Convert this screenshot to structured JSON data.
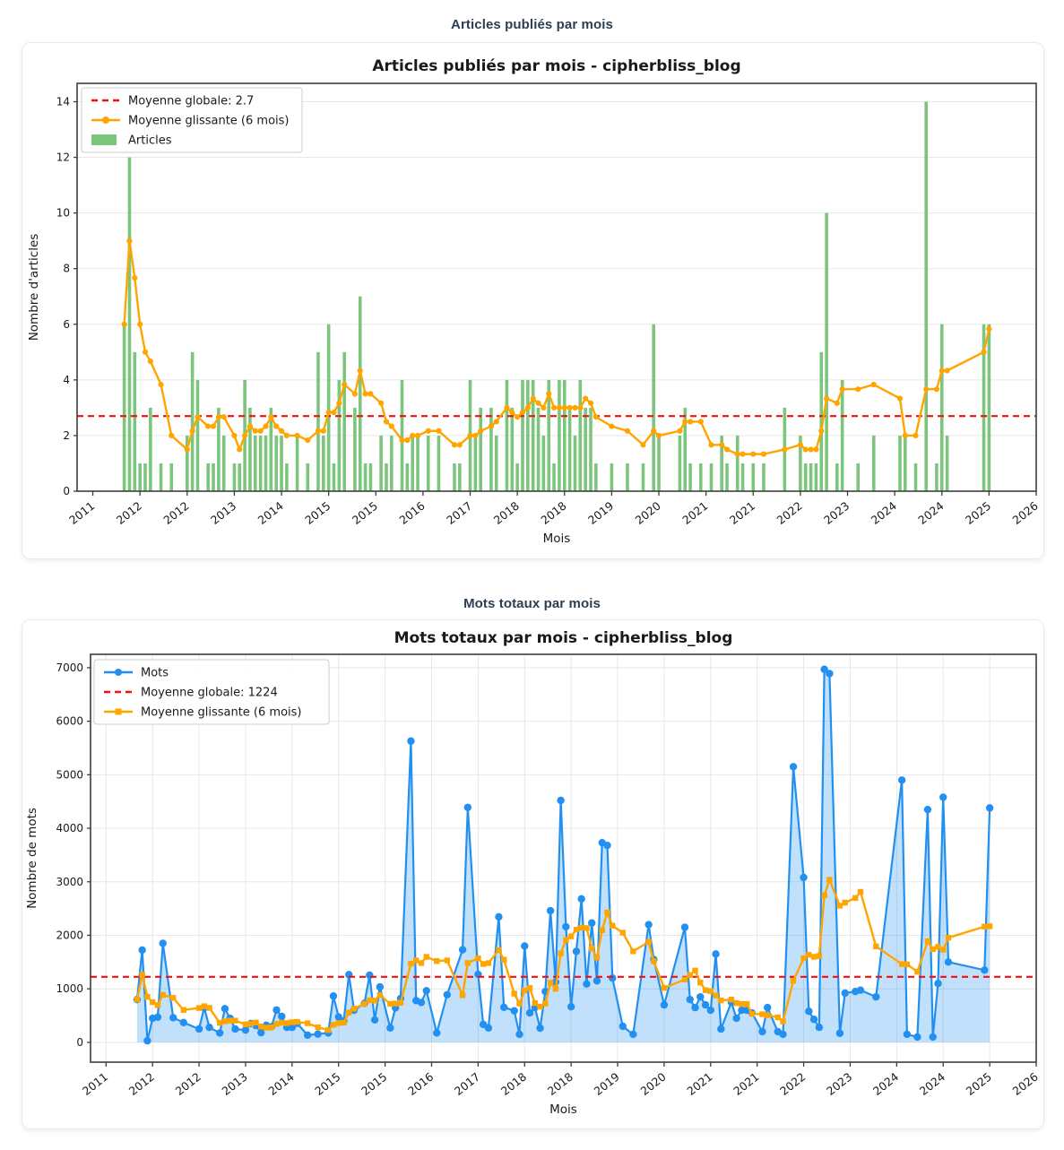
{
  "page": {
    "background": "#ffffff"
  },
  "sections": [
    {
      "header": "Articles publiés par mois"
    },
    {
      "header": "Mots totaux par mois"
    }
  ],
  "colors": {
    "header_text": "#2c3e50",
    "bar_green": "#7cc57c",
    "ma_orange": "#ffa500",
    "mean_red": "#f50f0f",
    "line_blue": "#2190f0",
    "fill_blue": "rgba(33,144,240,0.28)",
    "grid": "#e7e7e7",
    "frame": "#3d3d3d"
  },
  "chart_data": [
    {
      "type": "bar",
      "title": "Articles publiés par mois - cipherbliss_blog",
      "xlabel": "Mois",
      "ylabel": "Nombre d'articles",
      "ymin": 0,
      "ymax": 14.66,
      "yticks": [
        0,
        2,
        4,
        6,
        8,
        10,
        12,
        14
      ],
      "xtick_first_index": 3,
      "xtick_step": 9,
      "xtick_labels": [
        "2011",
        "2012",
        "2012",
        "2013",
        "2014",
        "2015",
        "2015",
        "2016",
        "2017",
        "2018",
        "2018",
        "2019",
        "2020",
        "2021",
        "2021",
        "2022",
        "2023",
        "2024",
        "2024",
        "2025",
        "2026"
      ],
      "grid_vertical": false,
      "mean_value": 2.7,
      "rolling_window": 6,
      "legend": [
        {
          "swatch": "dash",
          "color": "mean_red",
          "label": "Moyenne globale: 2.7"
        },
        {
          "swatch": "line-circle",
          "color": "ma_orange",
          "label": "Moyenne glissante (6 mois)"
        },
        {
          "swatch": "patch",
          "color": "bar_green",
          "label": "Articles"
        }
      ],
      "ma_marker": "circle",
      "points": [
        [
          "2011-10",
          6
        ],
        [
          "2011-11",
          12
        ],
        [
          "2011-12",
          5
        ],
        [
          "2012-01",
          1
        ],
        [
          "2012-02",
          1
        ],
        [
          "2012-03",
          3
        ],
        [
          "2012-05",
          1
        ],
        [
          "2012-07",
          1
        ],
        [
          "2012-10",
          2
        ],
        [
          "2012-11",
          5
        ],
        [
          "2012-12",
          4
        ],
        [
          "2013-02",
          1
        ],
        [
          "2013-03",
          1
        ],
        [
          "2013-04",
          3
        ],
        [
          "2013-05",
          2
        ],
        [
          "2013-07",
          1
        ],
        [
          "2013-08",
          1
        ],
        [
          "2013-09",
          4
        ],
        [
          "2013-10",
          3
        ],
        [
          "2013-11",
          2
        ],
        [
          "2013-12",
          2
        ],
        [
          "2014-01",
          2
        ],
        [
          "2014-02",
          3
        ],
        [
          "2014-03",
          2
        ],
        [
          "2014-04",
          2
        ],
        [
          "2014-05",
          1
        ],
        [
          "2014-07",
          2
        ],
        [
          "2014-09",
          1
        ],
        [
          "2014-11",
          5
        ],
        [
          "2014-12",
          2
        ],
        [
          "2015-01",
          6
        ],
        [
          "2015-02",
          1
        ],
        [
          "2015-03",
          4
        ],
        [
          "2015-04",
          5
        ],
        [
          "2015-06",
          3
        ],
        [
          "2015-07",
          7
        ],
        [
          "2015-08",
          1
        ],
        [
          "2015-09",
          1
        ],
        [
          "2015-11",
          2
        ],
        [
          "2015-12",
          1
        ],
        [
          "2016-01",
          2
        ],
        [
          "2016-03",
          4
        ],
        [
          "2016-04",
          1
        ],
        [
          "2016-05",
          2
        ],
        [
          "2016-06",
          2
        ],
        [
          "2016-08",
          2
        ],
        [
          "2016-10",
          2
        ],
        [
          "2017-01",
          1
        ],
        [
          "2017-02",
          1
        ],
        [
          "2017-04",
          4
        ],
        [
          "2017-05",
          2
        ],
        [
          "2017-06",
          3
        ],
        [
          "2017-08",
          3
        ],
        [
          "2017-09",
          2
        ],
        [
          "2017-11",
          4
        ],
        [
          "2017-12",
          3
        ],
        [
          "2018-01",
          1
        ],
        [
          "2018-02",
          4
        ],
        [
          "2018-03",
          4
        ],
        [
          "2018-04",
          4
        ],
        [
          "2018-05",
          3
        ],
        [
          "2018-06",
          2
        ],
        [
          "2018-07",
          4
        ],
        [
          "2018-08",
          1
        ],
        [
          "2018-09",
          4
        ],
        [
          "2018-10",
          4
        ],
        [
          "2018-11",
          3
        ],
        [
          "2018-12",
          2
        ],
        [
          "2019-01",
          4
        ],
        [
          "2019-02",
          3
        ],
        [
          "2019-03",
          3
        ],
        [
          "2019-04",
          1
        ],
        [
          "2019-07",
          1
        ],
        [
          "2019-10",
          1
        ],
        [
          "2020-01",
          1
        ],
        [
          "2020-03",
          6
        ],
        [
          "2020-04",
          2
        ],
        [
          "2020-08",
          2
        ],
        [
          "2020-09",
          3
        ],
        [
          "2020-10",
          1
        ],
        [
          "2020-12",
          1
        ],
        [
          "2021-02",
          1
        ],
        [
          "2021-04",
          2
        ],
        [
          "2021-05",
          1
        ],
        [
          "2021-07",
          2
        ],
        [
          "2021-08",
          1
        ],
        [
          "2021-10",
          1
        ],
        [
          "2021-12",
          1
        ],
        [
          "2022-04",
          3
        ],
        [
          "2022-07",
          2
        ],
        [
          "2022-08",
          1
        ],
        [
          "2022-09",
          1
        ],
        [
          "2022-10",
          1
        ],
        [
          "2022-11",
          5
        ],
        [
          "2022-12",
          10
        ],
        [
          "2023-02",
          1
        ],
        [
          "2023-03",
          4
        ],
        [
          "2023-06",
          1
        ],
        [
          "2023-09",
          2
        ],
        [
          "2024-02",
          2
        ],
        [
          "2024-03",
          2
        ],
        [
          "2024-05",
          1
        ],
        [
          "2024-07",
          14
        ],
        [
          "2024-09",
          1
        ],
        [
          "2024-10",
          6
        ],
        [
          "2024-11",
          2
        ],
        [
          "2025-06",
          6
        ],
        [
          "2025-07",
          6
        ]
      ]
    },
    {
      "type": "line",
      "title": "Mots totaux par mois - cipherbliss_blog",
      "xlabel": "Mois",
      "ylabel": "Nombre de mots",
      "ymin": -370,
      "ymax": 7250,
      "yticks": [
        0,
        1000,
        2000,
        3000,
        4000,
        5000,
        6000,
        7000
      ],
      "xtick_first_index": 3,
      "xtick_step": 9,
      "xtick_labels": [
        "2011",
        "2012",
        "2012",
        "2013",
        "2014",
        "2015",
        "2015",
        "2016",
        "2017",
        "2018",
        "2018",
        "2019",
        "2020",
        "2021",
        "2021",
        "2022",
        "2023",
        "2024",
        "2024",
        "2025",
        "2026"
      ],
      "grid_vertical": true,
      "mean_value": 1224,
      "rolling_window": 6,
      "legend": [
        {
          "swatch": "line-circle",
          "color": "line_blue",
          "label": "Mots"
        },
        {
          "swatch": "dash",
          "color": "mean_red",
          "label": "Moyenne globale: 1224"
        },
        {
          "swatch": "line-square",
          "color": "ma_orange",
          "label": "Moyenne glissante (6 mois)"
        }
      ],
      "ma_marker": "square",
      "points": [
        [
          "2011-10",
          800
        ],
        [
          "2011-11",
          1725
        ],
        [
          "2011-12",
          30
        ],
        [
          "2012-01",
          450
        ],
        [
          "2012-02",
          470
        ],
        [
          "2012-03",
          1850
        ],
        [
          "2012-05",
          460
        ],
        [
          "2012-07",
          370
        ],
        [
          "2012-10",
          250
        ],
        [
          "2012-11",
          650
        ],
        [
          "2012-12",
          280
        ],
        [
          "2013-02",
          175
        ],
        [
          "2013-03",
          630
        ],
        [
          "2013-04",
          450
        ],
        [
          "2013-05",
          250
        ],
        [
          "2013-07",
          230
        ],
        [
          "2013-08",
          350
        ],
        [
          "2013-09",
          315
        ],
        [
          "2013-10",
          180
        ],
        [
          "2013-11",
          320
        ],
        [
          "2013-12",
          290
        ],
        [
          "2014-01",
          605
        ],
        [
          "2014-02",
          485
        ],
        [
          "2014-03",
          280
        ],
        [
          "2014-04",
          280
        ],
        [
          "2014-05",
          355
        ],
        [
          "2014-07",
          135
        ],
        [
          "2014-09",
          155
        ],
        [
          "2014-11",
          175
        ],
        [
          "2014-12",
          865
        ],
        [
          "2015-01",
          475
        ],
        [
          "2015-02",
          400
        ],
        [
          "2015-03",
          1265
        ],
        [
          "2015-04",
          600
        ],
        [
          "2015-06",
          730
        ],
        [
          "2015-07",
          1255
        ],
        [
          "2015-08",
          420
        ],
        [
          "2015-09",
          1035
        ],
        [
          "2015-11",
          270
        ],
        [
          "2015-12",
          645
        ],
        [
          "2016-01",
          820
        ],
        [
          "2016-03",
          5630
        ],
        [
          "2016-04",
          780
        ],
        [
          "2016-05",
          745
        ],
        [
          "2016-06",
          965
        ],
        [
          "2016-08",
          175
        ],
        [
          "2016-10",
          890
        ],
        [
          "2017-01",
          1730
        ],
        [
          "2017-02",
          4390
        ],
        [
          "2017-04",
          1270
        ],
        [
          "2017-05",
          335
        ],
        [
          "2017-06",
          270
        ],
        [
          "2017-08",
          2345
        ],
        [
          "2017-09",
          655
        ],
        [
          "2017-11",
          590
        ],
        [
          "2017-12",
          150
        ],
        [
          "2018-01",
          1800
        ],
        [
          "2018-02",
          550
        ],
        [
          "2018-03",
          650
        ],
        [
          "2018-04",
          265
        ],
        [
          "2018-05",
          950
        ],
        [
          "2018-06",
          2460
        ],
        [
          "2018-07",
          1130
        ],
        [
          "2018-08",
          4520
        ],
        [
          "2018-09",
          2160
        ],
        [
          "2018-10",
          665
        ],
        [
          "2018-11",
          1700
        ],
        [
          "2018-12",
          2680
        ],
        [
          "2019-01",
          1090
        ],
        [
          "2019-02",
          2230
        ],
        [
          "2019-03",
          1150
        ],
        [
          "2019-04",
          3730
        ],
        [
          "2019-05",
          3680
        ],
        [
          "2019-06",
          1200
        ],
        [
          "2019-08",
          300
        ],
        [
          "2019-10",
          150
        ],
        [
          "2020-01",
          2200
        ],
        [
          "2020-02",
          1550
        ],
        [
          "2020-04",
          700
        ],
        [
          "2020-08",
          2150
        ],
        [
          "2020-09",
          800
        ],
        [
          "2020-10",
          650
        ],
        [
          "2020-11",
          850
        ],
        [
          "2020-12",
          700
        ],
        [
          "2021-01",
          600
        ],
        [
          "2021-02",
          1650
        ],
        [
          "2021-03",
          250
        ],
        [
          "2021-05",
          750
        ],
        [
          "2021-06",
          450
        ],
        [
          "2021-07",
          600
        ],
        [
          "2021-08",
          600
        ],
        [
          "2021-09",
          550
        ],
        [
          "2021-11",
          200
        ],
        [
          "2021-12",
          650
        ],
        [
          "2022-02",
          200
        ],
        [
          "2022-03",
          150
        ],
        [
          "2022-05",
          5150
        ],
        [
          "2022-07",
          3080
        ],
        [
          "2022-08",
          580
        ],
        [
          "2022-09",
          430
        ],
        [
          "2022-10",
          280
        ],
        [
          "2022-11",
          6970
        ],
        [
          "2022-12",
          6890
        ],
        [
          "2023-02",
          170
        ],
        [
          "2023-03",
          920
        ],
        [
          "2023-05",
          950
        ],
        [
          "2023-06",
          975
        ],
        [
          "2023-09",
          850
        ],
        [
          "2024-02",
          4900
        ],
        [
          "2024-03",
          150
        ],
        [
          "2024-05",
          100
        ],
        [
          "2024-07",
          4350
        ],
        [
          "2024-08",
          100
        ],
        [
          "2024-09",
          1100
        ],
        [
          "2024-10",
          4580
        ],
        [
          "2024-11",
          1500
        ],
        [
          "2025-06",
          1350
        ],
        [
          "2025-07",
          4380
        ]
      ]
    }
  ]
}
